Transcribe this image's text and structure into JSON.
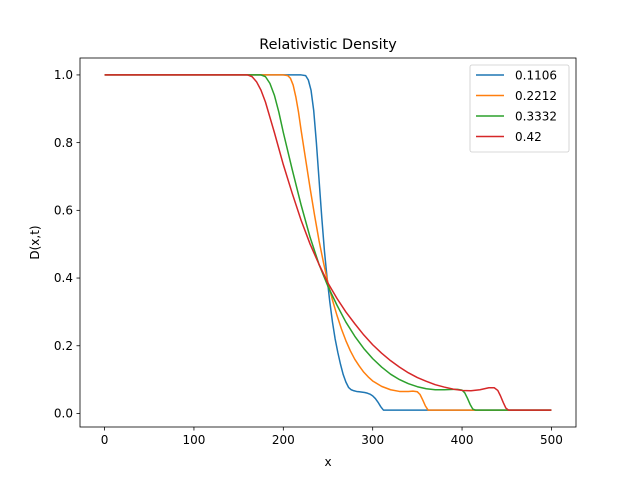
{
  "chart_data": {
    "type": "line",
    "title": "Relativistic Density",
    "xlabel": "x",
    "ylabel": "D(x,t)",
    "xlim": [
      -27.5,
      527.5
    ],
    "ylim": [
      -0.04,
      1.05
    ],
    "x_ticks": [
      0,
      100,
      200,
      300,
      400,
      500
    ],
    "y_ticks": [
      0.0,
      0.2,
      0.4,
      0.6,
      0.8,
      1.0
    ],
    "x_tick_labels": [
      "0",
      "100",
      "200",
      "300",
      "400",
      "500"
    ],
    "y_tick_labels": [
      "0.0",
      "0.2",
      "0.4",
      "0.6",
      "0.8",
      "1.0"
    ],
    "grid": false,
    "legend_position": "top-right",
    "series": [
      {
        "name": "0.1106",
        "color": "#1f77b4",
        "x": [
          0,
          220,
          225,
          228,
          231,
          234,
          237,
          240,
          243,
          246,
          249,
          252,
          255,
          258,
          261,
          264,
          267,
          270,
          273,
          276,
          279,
          282,
          285,
          288,
          291,
          294,
          297,
          300,
          303,
          306,
          309,
          312,
          500
        ],
        "y": [
          1.0,
          1.0,
          0.998,
          0.985,
          0.955,
          0.895,
          0.8,
          0.69,
          0.58,
          0.48,
          0.4,
          0.33,
          0.27,
          0.22,
          0.18,
          0.145,
          0.115,
          0.093,
          0.077,
          0.07,
          0.067,
          0.065,
          0.064,
          0.063,
          0.062,
          0.06,
          0.057,
          0.052,
          0.044,
          0.033,
          0.02,
          0.01,
          0.01
        ]
      },
      {
        "name": "0.2212",
        "color": "#ff7f0e",
        "x": [
          0,
          200,
          205,
          208,
          211,
          214,
          217,
          220,
          225,
          230,
          235,
          240,
          245,
          250,
          255,
          260,
          265,
          270,
          275,
          280,
          285,
          290,
          295,
          300,
          310,
          320,
          330,
          340,
          345,
          350,
          353,
          356,
          359,
          362,
          500
        ],
        "y": [
          1.0,
          1.0,
          0.998,
          0.99,
          0.97,
          0.935,
          0.89,
          0.835,
          0.75,
          0.665,
          0.585,
          0.51,
          0.445,
          0.385,
          0.335,
          0.29,
          0.25,
          0.215,
          0.185,
          0.16,
          0.14,
          0.122,
          0.108,
          0.096,
          0.08,
          0.07,
          0.065,
          0.065,
          0.066,
          0.064,
          0.056,
          0.04,
          0.022,
          0.01,
          0.01
        ]
      },
      {
        "name": "0.3332",
        "color": "#2ca02c",
        "x": [
          0,
          175,
          180,
          185,
          190,
          195,
          200,
          210,
          220,
          230,
          240,
          250,
          260,
          270,
          280,
          290,
          300,
          310,
          320,
          330,
          340,
          350,
          360,
          370,
          380,
          390,
          395,
          400,
          403,
          406,
          409,
          412,
          415,
          500
        ],
        "y": [
          1.0,
          1.0,
          0.995,
          0.975,
          0.94,
          0.89,
          0.83,
          0.72,
          0.615,
          0.52,
          0.44,
          0.375,
          0.32,
          0.27,
          0.228,
          0.192,
          0.162,
          0.137,
          0.116,
          0.1,
          0.088,
          0.079,
          0.073,
          0.07,
          0.07,
          0.071,
          0.071,
          0.069,
          0.061,
          0.045,
          0.027,
          0.013,
          0.01,
          0.01
        ]
      },
      {
        "name": "0.42",
        "color": "#d62728",
        "x": [
          0,
          160,
          165,
          170,
          175,
          180,
          190,
          200,
          210,
          220,
          230,
          240,
          250,
          260,
          270,
          280,
          290,
          300,
          310,
          320,
          330,
          340,
          350,
          360,
          370,
          380,
          390,
          400,
          410,
          420,
          430,
          436,
          440,
          443,
          446,
          449,
          452,
          500
        ],
        "y": [
          1.0,
          1.0,
          0.995,
          0.98,
          0.955,
          0.92,
          0.83,
          0.735,
          0.65,
          0.57,
          0.5,
          0.44,
          0.385,
          0.34,
          0.3,
          0.265,
          0.232,
          0.203,
          0.178,
          0.156,
          0.137,
          0.12,
          0.106,
          0.095,
          0.085,
          0.078,
          0.072,
          0.068,
          0.067,
          0.07,
          0.076,
          0.076,
          0.068,
          0.052,
          0.033,
          0.016,
          0.01,
          0.01
        ]
      }
    ]
  }
}
